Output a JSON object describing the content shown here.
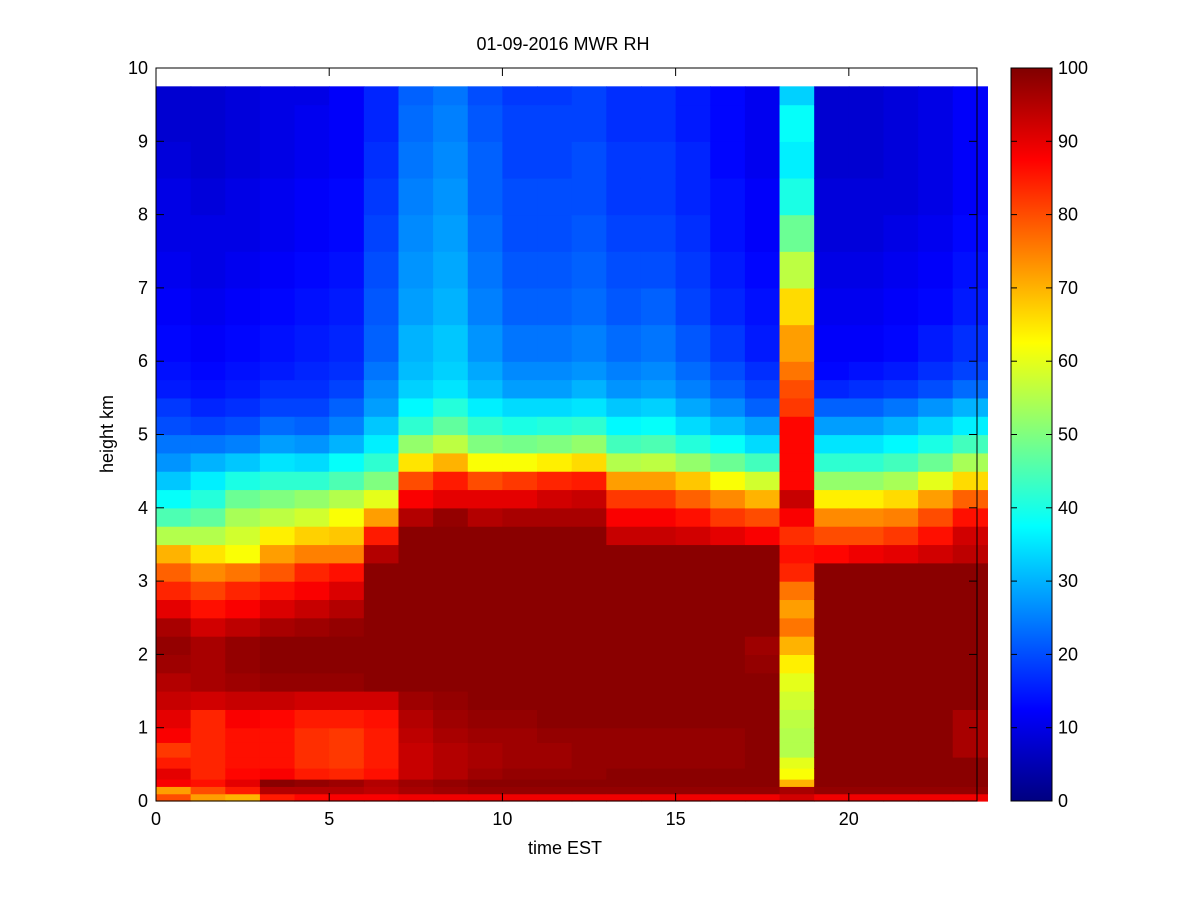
{
  "chart_data": {
    "type": "heatmap",
    "title": "01-09-2016 MWR RH",
    "xlabel": "time EST",
    "ylabel": "height km",
    "xlim": [
      0,
      23.7
    ],
    "ylim": [
      0,
      10
    ],
    "x_ticks": [
      "0",
      "5",
      "10",
      "15",
      "20"
    ],
    "y_ticks": [
      "0",
      "1",
      "2",
      "3",
      "4",
      "5",
      "6",
      "7",
      "8",
      "9",
      "10"
    ],
    "colormap": "jet",
    "colorbar": {
      "range": [
        0,
        100
      ],
      "ticks": [
        "0",
        "10",
        "20",
        "30",
        "40",
        "50",
        "60",
        "70",
        "80",
        "90",
        "100"
      ]
    },
    "x": [
      0.5,
      1.5,
      2.5,
      3.5,
      4.5,
      5.5,
      6.5,
      7.5,
      8.5,
      9.5,
      10.5,
      11.5,
      12.5,
      13.5,
      14.5,
      15.5,
      16.5,
      17.5,
      18.5,
      19.5,
      20.5,
      21.5,
      22.5,
      23.5
    ],
    "z_height_km": [
      0.0,
      0.1,
      0.2,
      0.3,
      0.45,
      0.6,
      0.8,
      1.0,
      1.25,
      1.5,
      1.75,
      2.0,
      2.25,
      2.5,
      2.75,
      3.0,
      3.25,
      3.5,
      3.75,
      4.0,
      4.25,
      4.5,
      4.75,
      5.0,
      5.25,
      5.5,
      5.75,
      6.0,
      6.5,
      7.0,
      7.5,
      8.0,
      8.5,
      9.0,
      9.5,
      9.75
    ],
    "rh_columns": [
      [
        80,
        72,
        88,
        90,
        85,
        82,
        88,
        90,
        93,
        95,
        97,
        98,
        96,
        90,
        84,
        78,
        70,
        55,
        45,
        38,
        32,
        27,
        24,
        20,
        18,
        15,
        14,
        13,
        12,
        11,
        10,
        10,
        9,
        8,
        8
      ],
      [
        72,
        80,
        86,
        84,
        84,
        84,
        84,
        84,
        92,
        96,
        96,
        96,
        92,
        86,
        81,
        74,
        65,
        55,
        47,
        41,
        36,
        30,
        24,
        19,
        16,
        14,
        13,
        12,
        11,
        10,
        10,
        9,
        8,
        8,
        8
      ],
      [
        70,
        85,
        90,
        87,
        86,
        86,
        86,
        88,
        93,
        97,
        98,
        98,
        94,
        88,
        84,
        76,
        62,
        58,
        54,
        48,
        40,
        32,
        25,
        20,
        17,
        15,
        14,
        13,
        12,
        11,
        10,
        10,
        9,
        9,
        9
      ],
      [
        85,
        95,
        99,
        88,
        86,
        86,
        86,
        87,
        93,
        98,
        99,
        99,
        96,
        91,
        86,
        79,
        72,
        64,
        56,
        50,
        42,
        35,
        28,
        23,
        19,
        17,
        15,
        14,
        13,
        12,
        11,
        11,
        10,
        10,
        10
      ],
      [
        87,
        95,
        98,
        85,
        83,
        83,
        83,
        85,
        92,
        98,
        99,
        99,
        97,
        93,
        88,
        84,
        75,
        67,
        58,
        52,
        42,
        34,
        27,
        22,
        19,
        17,
        16,
        15,
        14,
        13,
        12,
        12,
        11,
        11,
        10
      ],
      [
        88,
        95,
        97,
        84,
        82,
        82,
        82,
        85,
        92,
        98,
        99,
        99,
        98,
        95,
        91,
        86,
        75,
        68,
        62,
        55,
        45,
        38,
        30,
        25,
        22,
        19,
        17,
        16,
        15,
        14,
        13,
        13,
        12,
        12,
        12
      ],
      [
        88,
        94,
        95,
        86,
        85,
        85,
        85,
        86,
        92,
        99,
        99,
        99,
        99,
        99,
        99,
        99,
        95,
        85,
        72,
        60,
        50,
        42,
        36,
        32,
        28,
        26,
        24,
        22,
        21,
        20,
        19,
        18,
        17,
        16,
        16
      ],
      [
        89,
        96,
        97,
        93,
        93,
        93,
        94,
        95,
        97,
        99,
        99,
        99,
        99,
        99,
        99,
        99,
        99,
        99,
        95,
        88,
        80,
        65,
        52,
        42,
        37,
        33,
        31,
        30,
        28,
        27,
        26,
        25,
        24,
        23,
        22
      ],
      [
        89,
        97,
        98,
        95,
        95,
        95,
        96,
        97,
        98,
        99,
        99,
        99,
        99,
        99,
        99,
        99,
        99,
        99,
        98,
        90,
        85,
        70,
        56,
        47,
        41,
        35,
        33,
        32,
        30,
        29,
        28,
        27,
        26,
        25,
        24
      ],
      [
        89,
        98,
        99,
        97,
        96,
        96,
        97,
        98,
        99,
        99,
        99,
        99,
        99,
        99,
        99,
        99,
        99,
        99,
        95,
        90,
        80,
        62,
        50,
        42,
        36,
        31,
        29,
        27,
        25,
        24,
        23,
        22,
        22,
        21,
        20
      ],
      [
        89,
        98,
        99,
        98,
        97,
        97,
        97,
        98,
        99,
        99,
        99,
        99,
        99,
        99,
        99,
        99,
        99,
        99,
        96,
        90,
        82,
        62,
        49,
        40,
        34,
        28,
        26,
        24,
        22,
        21,
        20,
        20,
        19,
        19,
        18
      ],
      [
        89,
        98,
        99,
        98,
        97,
        97,
        98,
        99,
        99,
        99,
        99,
        99,
        99,
        99,
        99,
        99,
        99,
        99,
        96,
        92,
        84,
        64,
        50,
        41,
        34,
        28,
        26,
        24,
        22,
        21,
        20,
        20,
        19,
        19,
        18
      ],
      [
        89,
        98,
        99,
        98,
        98,
        98,
        98,
        99,
        99,
        99,
        99,
        99,
        99,
        99,
        99,
        99,
        99,
        99,
        96,
        93,
        85,
        66,
        52,
        42,
        35,
        30,
        27,
        25,
        23,
        22,
        21,
        20,
        20,
        19,
        19
      ],
      [
        89,
        98,
        99,
        99,
        98,
        98,
        98,
        99,
        99,
        99,
        99,
        99,
        99,
        99,
        99,
        99,
        99,
        93,
        88,
        82,
        72,
        55,
        44,
        37,
        32,
        27,
        25,
        23,
        21,
        20,
        19,
        18,
        18,
        17,
        17
      ],
      [
        89,
        98,
        99,
        99,
        98,
        98,
        98,
        99,
        99,
        99,
        99,
        99,
        99,
        99,
        99,
        99,
        99,
        93,
        88,
        82,
        72,
        56,
        45,
        38,
        33,
        28,
        26,
        24,
        22,
        20,
        19,
        18,
        18,
        17,
        17
      ],
      [
        89,
        98,
        99,
        99,
        98,
        98,
        98,
        99,
        99,
        99,
        99,
        99,
        99,
        99,
        99,
        99,
        99,
        92,
        86,
        78,
        68,
        52,
        41,
        34,
        29,
        25,
        23,
        21,
        19,
        18,
        17,
        16,
        16,
        15,
        15
      ],
      [
        89,
        98,
        99,
        99,
        98,
        98,
        98,
        99,
        99,
        99,
        99,
        99,
        99,
        99,
        99,
        99,
        99,
        90,
        82,
        74,
        62,
        48,
        38,
        31,
        26,
        22,
        20,
        18,
        16,
        15,
        14,
        14,
        13,
        13,
        13
      ],
      [
        89,
        98,
        99,
        99,
        99,
        99,
        99,
        99,
        99,
        99,
        98,
        97,
        99,
        99,
        99,
        99,
        99,
        88,
        80,
        70,
        58,
        44,
        34,
        28,
        22,
        19,
        17,
        15,
        14,
        13,
        12,
        12,
        11,
        11,
        11
      ],
      [
        92,
        96,
        70,
        62,
        60,
        55,
        55,
        56,
        58,
        60,
        64,
        70,
        76,
        72,
        76,
        84,
        86,
        83,
        88,
        93,
        87,
        87,
        87,
        87,
        82,
        80,
        76,
        72,
        66,
        56,
        48,
        40,
        36,
        38,
        33
      ],
      [
        89,
        98,
        99,
        99,
        99,
        99,
        99,
        99,
        99,
        99,
        99,
        99,
        99,
        99,
        99,
        99,
        87,
        80,
        74,
        64,
        52,
        42,
        35,
        28,
        22,
        16,
        13,
        12,
        11,
        10,
        9,
        9,
        8,
        8,
        8
      ],
      [
        89,
        98,
        99,
        99,
        99,
        99,
        99,
        99,
        99,
        99,
        99,
        99,
        99,
        99,
        99,
        99,
        89,
        80,
        74,
        64,
        52,
        42,
        35,
        28,
        22,
        17,
        14,
        12,
        11,
        10,
        9,
        9,
        8,
        8,
        8
      ],
      [
        89,
        98,
        99,
        99,
        99,
        99,
        99,
        99,
        99,
        99,
        99,
        99,
        99,
        99,
        99,
        99,
        90,
        82,
        75,
        66,
        54,
        44,
        37,
        30,
        24,
        18,
        15,
        13,
        12,
        11,
        10,
        9,
        9,
        9,
        9
      ],
      [
        89,
        98,
        99,
        99,
        99,
        99,
        99,
        99,
        99,
        99,
        99,
        99,
        99,
        99,
        99,
        99,
        92,
        86,
        80,
        72,
        60,
        48,
        40,
        33,
        27,
        20,
        17,
        15,
        13,
        12,
        11,
        10,
        10,
        10,
        10
      ],
      [
        89,
        98,
        99,
        99,
        99,
        96,
        96,
        96,
        99,
        99,
        99,
        99,
        99,
        99,
        99,
        99,
        94,
        92,
        86,
        78,
        66,
        54,
        44,
        36,
        30,
        23,
        19,
        17,
        15,
        14,
        13,
        12,
        12,
        12,
        12
      ]
    ]
  }
}
